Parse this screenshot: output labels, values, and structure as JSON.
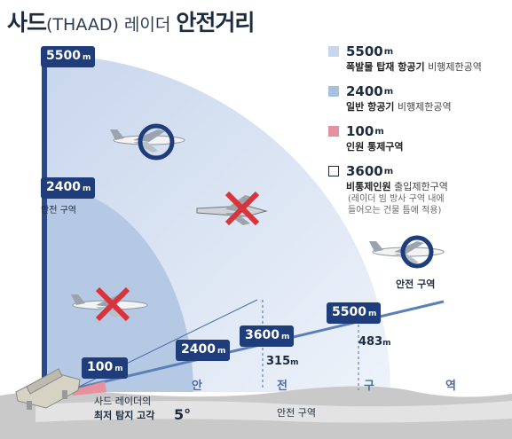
{
  "title": {
    "main_prefix": "사드",
    "paren": "(THAAD)",
    "mid": " 레이더 ",
    "bold_suffix": "안전거리"
  },
  "colors": {
    "outer_zone": "#dde6f3",
    "inner_zone": "#b6c9e4",
    "control_zone": "#ea9aa7",
    "tag_bg": "#1f3d7a",
    "beam": "#3a5f9f"
  },
  "legend": [
    {
      "value": "5500",
      "unit": "m",
      "desc_bold": "폭발물 탑재 항공기",
      "desc_light": " 비행제한공역",
      "swatch": "#c9d7ec",
      "note": ""
    },
    {
      "value": "2400",
      "unit": "m",
      "desc_bold": "일반 항공기",
      "desc_light": " 비행제한공역",
      "swatch": "#a9bfe0",
      "note": ""
    },
    {
      "value": "100",
      "unit": "m",
      "desc_bold": "인원 통제구역",
      "desc_light": "",
      "swatch": "#e7909e",
      "note": ""
    },
    {
      "value": "3600",
      "unit": "m",
      "desc_bold": "비통제인원",
      "desc_light": " 출입제한구역",
      "swatch": "#ffffff",
      "note_lines": [
        "(레이더 빔 방사 구역 내에",
        "들어오는 건물 틈에 적용)"
      ]
    }
  ],
  "axis_tags": {
    "top": {
      "value": "5500",
      "unit": "m"
    },
    "mid": {
      "value": "2400",
      "unit": "m"
    },
    "mid_label": "안전 구역"
  },
  "beam_tags": [
    {
      "value": "100",
      "unit": "m"
    },
    {
      "value": "2400",
      "unit": "m"
    },
    {
      "value": "3600",
      "unit": "m"
    },
    {
      "value": "5500",
      "unit": "m"
    }
  ],
  "heights": [
    {
      "value": "315",
      "unit": "m"
    },
    {
      "value": "483",
      "unit": "m"
    }
  ],
  "safe_zone_label_sky": "안전 구역",
  "ground_letters": [
    "안",
    "전",
    "구",
    "역"
  ],
  "ground_label": "안전 구역",
  "min_angle": {
    "line1": "사드 레이더의",
    "line2": "최저 탐지 고각",
    "value": "5°"
  }
}
